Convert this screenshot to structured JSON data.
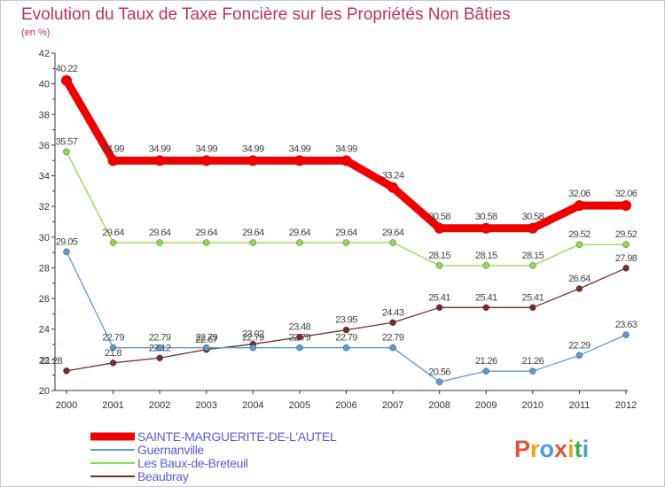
{
  "chart_data": {
    "type": "line",
    "title": "Evolution du Taux de Taxe Foncière sur les Propriétés Non Bâties",
    "subtitle": "(en %)",
    "xlabel": "",
    "ylabel": "(en %)",
    "ylim": [
      20,
      42
    ],
    "yticks": [
      20,
      22,
      24,
      26,
      28,
      30,
      32,
      34,
      36,
      38,
      40,
      42
    ],
    "categories": [
      "2000",
      "2001",
      "2002",
      "2003",
      "2004",
      "2005",
      "2006",
      "2007",
      "2008",
      "2009",
      "2010",
      "2011",
      "2012"
    ],
    "series": [
      {
        "name": "SAINTE-MARGUERITE-DE-L'AUTEL",
        "color": "#ee0000",
        "values": [
          40.22,
          34.99,
          34.99,
          34.99,
          34.99,
          34.99,
          34.99,
          33.24,
          30.58,
          30.58,
          30.58,
          32.06,
          32.06
        ],
        "labels": [
          "40.22",
          "34.99",
          "34.99",
          "34.99",
          "34.99",
          "34.99",
          "34.99",
          "33.24",
          "30.58",
          "30.58",
          "30.58",
          "32.06",
          "32.06"
        ]
      },
      {
        "name": "Guernanville",
        "color": "#5b9bd5",
        "values": [
          29.05,
          22.79,
          22.79,
          22.79,
          22.79,
          22.79,
          22.79,
          22.79,
          20.56,
          21.26,
          21.26,
          22.29,
          23.63
        ],
        "labels": [
          "29.05",
          "22.79",
          "22.79",
          "22.79",
          "22.79",
          "22.79",
          "22.79",
          "22.79",
          "20.56",
          "21.26",
          "21.26",
          "22.29",
          "23.63"
        ]
      },
      {
        "name": "Les Baux-de-Breteuil",
        "color": "#8fdc4a",
        "values": [
          35.57,
          29.64,
          29.64,
          29.64,
          29.64,
          29.64,
          29.64,
          29.64,
          28.15,
          28.15,
          28.15,
          29.52,
          29.52
        ],
        "labels": [
          "35.57",
          "29.64",
          "29.64",
          "29.64",
          "29.64",
          "29.64",
          "29.64",
          "29.64",
          "28.15",
          "28.15",
          "28.15",
          "29.52",
          "29.52"
        ]
      },
      {
        "name": "Beaubray",
        "color": "#7b2a2a",
        "values": [
          21.28,
          21.8,
          22.12,
          22.67,
          23.02,
          23.48,
          23.95,
          24.43,
          25.41,
          25.41,
          25.41,
          26.64,
          27.98
        ],
        "labels": [
          "21.28",
          "21.8",
          "22.12",
          "22.67",
          "23.02",
          "23.48",
          "23.95",
          "24.43",
          "25.41",
          "25.41",
          "25.41",
          "26.64",
          "27.98"
        ]
      }
    ],
    "legend_position": "bottom-left",
    "grid": false
  },
  "watermark": {
    "text": "Proxiti",
    "letters": [
      "P",
      "r",
      "o",
      "x",
      "i",
      "t",
      "i"
    ],
    "colors": [
      "#e2543e",
      "#f0a21c",
      "#4a9be0",
      "#e2543e",
      "#f0a21c",
      "#3fae4f",
      "#4a9be0"
    ]
  }
}
